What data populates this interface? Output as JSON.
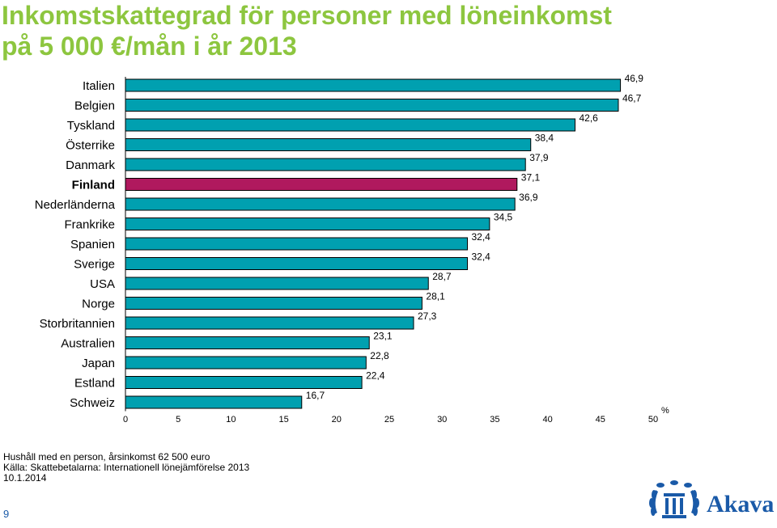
{
  "title_line1": "Inkomstskattegrad för personer med löneinkomst",
  "title_line2": "på 5 000 €/mån i år 2013",
  "chart_data": {
    "type": "bar",
    "orientation": "horizontal",
    "categories": [
      "Italien",
      "Belgien",
      "Tyskland",
      "Österrike",
      "Danmark",
      "Finland",
      "Nederländerna",
      "Frankrike",
      "Spanien",
      "Sverige",
      "USA",
      "Norge",
      "Storbritannien",
      "Australien",
      "Japan",
      "Estland",
      "Schweiz"
    ],
    "values": [
      46.9,
      46.7,
      42.6,
      38.4,
      37.9,
      37.1,
      36.9,
      34.5,
      32.4,
      32.4,
      28.7,
      28.1,
      27.3,
      23.1,
      22.8,
      22.4,
      16.7
    ],
    "value_labels": [
      "46,9",
      "46,7",
      "42,6",
      "38,4",
      "37,9",
      "37,1",
      "36,9",
      "34,5",
      "32,4",
      "32,4",
      "28,7",
      "28,1",
      "27,3",
      "23,1",
      "22,8",
      "22,4",
      "16,7"
    ],
    "highlight": "Finland",
    "xlim": [
      0,
      50
    ],
    "xticks": [
      "0",
      "5",
      "10",
      "15",
      "20",
      "25",
      "30",
      "35",
      "40",
      "45",
      "50"
    ],
    "xunit": "%",
    "bar_color": "#00a0b0",
    "highlight_color": "#b0195e"
  },
  "footnotes": [
    "Hushåll med en person, årsinkomst 62 500 euro",
    "Källa:  Skattebetalarna: Internationell lönejämförelse 2013",
    "10.1.2014"
  ],
  "page_number": "9",
  "logo": {
    "text": "Akava",
    "color": "#1a5aa8"
  }
}
